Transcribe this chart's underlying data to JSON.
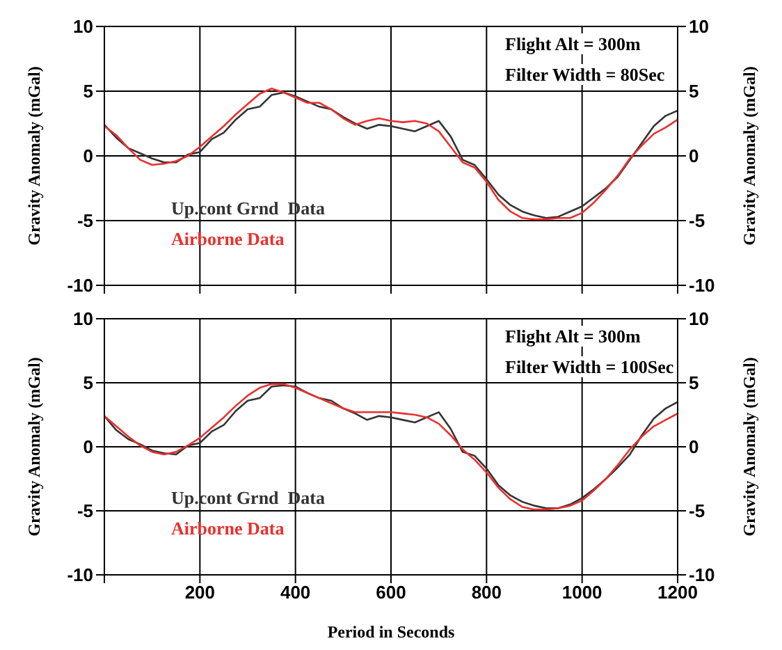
{
  "chart_data": [
    {
      "type": "line",
      "ylabel": "Gravity Anomaly (mGal)",
      "y2label": "Gravity Anomaly (mGal)",
      "annotations": [
        "Flight Alt = 300m",
        "Filter Width = 80Sec"
      ],
      "x": [
        0,
        25,
        50,
        75,
        100,
        125,
        150,
        175,
        200,
        225,
        250,
        275,
        300,
        325,
        350,
        375,
        400,
        425,
        450,
        475,
        500,
        525,
        550,
        575,
        600,
        625,
        650,
        675,
        700,
        725,
        750,
        775,
        800,
        825,
        850,
        875,
        900,
        925,
        950,
        975,
        1000,
        1025,
        1050,
        1075,
        1100,
        1125,
        1150,
        1175,
        1200
      ],
      "series": [
        {
          "name": "Up.cont Grnd  Data",
          "color": "#333333",
          "values": [
            2.4,
            1.4,
            0.6,
            0.2,
            -0.2,
            -0.5,
            -0.5,
            0.1,
            0.3,
            1.3,
            1.8,
            2.8,
            3.6,
            3.8,
            4.7,
            4.9,
            4.6,
            4.2,
            3.8,
            3.6,
            3.0,
            2.5,
            2.1,
            2.4,
            2.3,
            2.1,
            1.9,
            2.3,
            2.7,
            1.5,
            -0.3,
            -0.7,
            -1.8,
            -3.0,
            -3.8,
            -4.3,
            -4.6,
            -4.8,
            -4.7,
            -4.3,
            -3.9,
            -3.2,
            -2.5,
            -1.6,
            -0.3,
            1.0,
            2.3,
            3.1,
            3.5
          ]
        },
        {
          "name": "Airborne Data",
          "color": "#e8312f",
          "values": [
            2.3,
            1.6,
            0.6,
            -0.3,
            -0.7,
            -0.6,
            -0.4,
            0.0,
            0.7,
            1.5,
            2.3,
            3.2,
            4.0,
            4.8,
            5.2,
            4.9,
            4.5,
            4.1,
            4.1,
            3.6,
            2.9,
            2.4,
            2.7,
            2.9,
            2.7,
            2.6,
            2.7,
            2.5,
            1.9,
            0.7,
            -0.5,
            -0.9,
            -2.0,
            -3.4,
            -4.3,
            -4.8,
            -4.9,
            -4.9,
            -4.8,
            -4.8,
            -4.4,
            -3.6,
            -2.6,
            -1.5,
            -0.2,
            0.8,
            1.7,
            2.2,
            2.8
          ]
        }
      ],
      "xlim": [
        0,
        1200
      ],
      "xticks": [
        {
          "value": 0,
          "label": null
        },
        200,
        400,
        600,
        800,
        1000,
        1200
      ],
      "ylim": [
        -10,
        10
      ],
      "yticks": [
        -10,
        -5,
        0,
        5,
        10
      ],
      "y2lim": [
        -10,
        10
      ],
      "y2ticks": [
        -10,
        -5,
        0,
        5,
        10
      ],
      "grid": true,
      "legend": "bottom left",
      "tick_labels": "y"
    },
    {
      "type": "line",
      "xlabel": "Period in Seconds",
      "ylabel": "Gravity Anomaly (mGal)",
      "y2label": "Gravity Anomaly (mGal)",
      "annotations": [
        "Flight Alt = 300m",
        "Filter Width = 100Sec"
      ],
      "x": [
        0,
        25,
        50,
        75,
        100,
        125,
        150,
        175,
        200,
        225,
        250,
        275,
        300,
        325,
        350,
        375,
        400,
        425,
        450,
        475,
        500,
        525,
        550,
        575,
        600,
        625,
        650,
        675,
        700,
        725,
        750,
        775,
        800,
        825,
        850,
        875,
        900,
        925,
        950,
        975,
        1000,
        1025,
        1050,
        1075,
        1100,
        1125,
        1150,
        1175,
        1200
      ],
      "series": [
        {
          "name": "Up.cont Grnd  Data",
          "color": "#333333",
          "values": [
            2.4,
            1.3,
            0.6,
            0.2,
            -0.3,
            -0.5,
            -0.6,
            0.1,
            0.3,
            1.2,
            1.7,
            2.8,
            3.6,
            3.8,
            4.7,
            4.8,
            4.7,
            4.2,
            3.8,
            3.6,
            3.0,
            2.6,
            2.1,
            2.4,
            2.3,
            2.1,
            1.9,
            2.3,
            2.7,
            1.4,
            -0.4,
            -0.7,
            -1.7,
            -3.0,
            -3.8,
            -4.3,
            -4.6,
            -4.8,
            -4.8,
            -4.5,
            -4.0,
            -3.3,
            -2.5,
            -1.6,
            -0.6,
            0.9,
            2.2,
            3.0,
            3.5
          ]
        },
        {
          "name": "Airborne Data",
          "color": "#e8312f",
          "values": [
            2.4,
            1.6,
            0.8,
            0.1,
            -0.4,
            -0.6,
            -0.4,
            0.1,
            0.7,
            1.5,
            2.3,
            3.2,
            4.0,
            4.6,
            4.9,
            4.9,
            4.6,
            4.2,
            3.8,
            3.4,
            3.0,
            2.7,
            2.7,
            2.7,
            2.7,
            2.6,
            2.5,
            2.3,
            1.8,
            0.9,
            -0.2,
            -1.0,
            -2.0,
            -3.2,
            -4.1,
            -4.7,
            -4.9,
            -4.9,
            -4.8,
            -4.6,
            -4.2,
            -3.4,
            -2.5,
            -1.4,
            -0.2,
            0.8,
            1.6,
            2.1,
            2.6
          ]
        }
      ],
      "xlim": [
        0,
        1200
      ],
      "xticks": [
        {
          "value": 0,
          "label": null
        },
        200,
        400,
        600,
        800,
        1000,
        1200
      ],
      "ylim": [
        -10,
        10
      ],
      "yticks": [
        -10,
        -5,
        0,
        5,
        10
      ],
      "y2lim": [
        -10,
        10
      ],
      "y2ticks": [
        -10,
        -5,
        0,
        5,
        10
      ],
      "grid": true,
      "legend": "bottom left"
    }
  ]
}
